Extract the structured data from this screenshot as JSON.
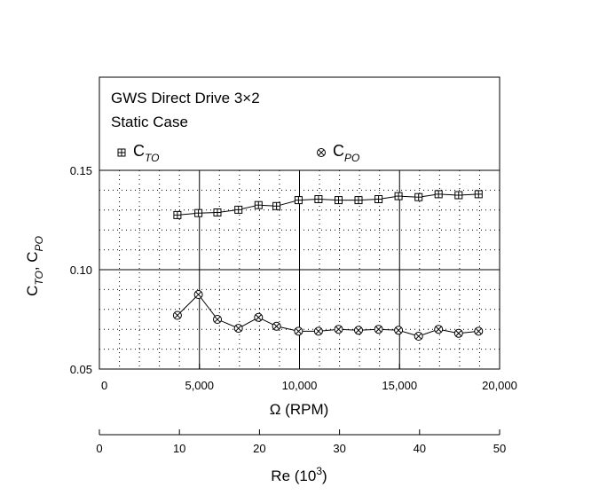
{
  "chart_data": {
    "type": "scatter",
    "title": "GWS Direct Drive 3×2",
    "subtitle": "Static Case",
    "xlabel": "Ω (RPM)",
    "ylabel": {
      "main": "C",
      "sub1": "TO",
      "sep": ", ",
      "sub2": "PO"
    },
    "xlim": [
      0,
      20000
    ],
    "ylim": [
      0.05,
      0.15
    ],
    "xticks": [
      "0",
      "5,000",
      "10,000",
      "15,000",
      "20,000"
    ],
    "yticks": [
      "0.05",
      "0.10",
      "0.15"
    ],
    "grid": true,
    "legend_position": "top",
    "secondary_x_axis": {
      "label": "Re (10",
      "label_sup": "3",
      "label_close": ")",
      "lim": [
        0,
        50
      ],
      "ticks": [
        "0",
        "10",
        "20",
        "30",
        "40",
        "50"
      ]
    },
    "x": [
      3900,
      4950,
      5900,
      6950,
      7950,
      8850,
      9950,
      10950,
      11950,
      12950,
      13950,
      14950,
      15950,
      16950,
      17950,
      18950
    ],
    "series": [
      {
        "name": {
          "main": "C",
          "sub": "TO"
        },
        "marker": "boxed-plus",
        "values": [
          0.1275,
          0.1285,
          0.1288,
          0.1302,
          0.1325,
          0.132,
          0.135,
          0.1355,
          0.135,
          0.135,
          0.1355,
          0.137,
          0.1365,
          0.138,
          0.1375,
          0.138
        ]
      },
      {
        "name": {
          "main": "C",
          "sub": "PO"
        },
        "marker": "circled-x",
        "values": [
          0.077,
          0.0875,
          0.075,
          0.0705,
          0.076,
          0.0715,
          0.069,
          0.069,
          0.07,
          0.0695,
          0.07,
          0.0695,
          0.0665,
          0.07,
          0.068,
          0.069
        ]
      }
    ]
  }
}
